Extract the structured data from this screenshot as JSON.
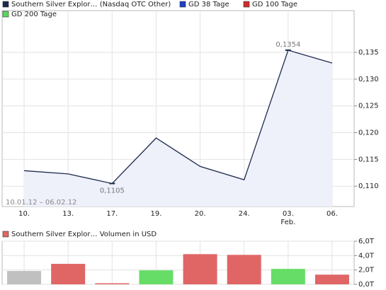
{
  "chart_data": [
    {
      "type": "line",
      "series": [
        {
          "name": "Southern Silver Explor… (Nasdaq OTC Other)",
          "color": "#1c2a4c",
          "values": [
            0.1129,
            0.1123,
            0.1105,
            0.119,
            0.1137,
            0.1112,
            0.1354,
            0.133
          ],
          "value_labels": [
            null,
            null,
            "0,1105",
            null,
            null,
            null,
            "0,1354",
            null
          ]
        }
      ],
      "indicators": [
        {
          "name": "GD 38 Tage",
          "color": "#1f3fc8"
        },
        {
          "name": "GD 100 Tage",
          "color": "#d42a2a"
        },
        {
          "name": "GD 200 Tage",
          "color": "#58d858"
        }
      ],
      "area_color": "#eef0fa",
      "categories": [
        "10.",
        "13.",
        "17.",
        "19.",
        "20.",
        "24.",
        "03.",
        "06."
      ],
      "month_labels": [
        null,
        null,
        null,
        null,
        null,
        null,
        "Feb.",
        null
      ],
      "date_range": "10.01.12 – 06.02.12",
      "ylim": [
        0.1062,
        0.1428
      ],
      "yticks": [
        {
          "value": 0.11,
          "label": "0,110"
        },
        {
          "value": 0.115,
          "label": "0,115"
        },
        {
          "value": 0.12,
          "label": "0,120"
        },
        {
          "value": 0.125,
          "label": "0,125"
        },
        {
          "value": 0.13,
          "label": "0,130"
        },
        {
          "value": 0.135,
          "label": "0,135"
        }
      ],
      "grid": true
    },
    {
      "type": "bar",
      "title": "Southern Silver Explor… Volumen in USD",
      "title_color": "#e06666",
      "values": [
        1.86,
        2.85,
        0.15,
        1.95,
        4.2,
        4.1,
        2.15,
        1.35
      ],
      "colors": [
        "#c0c0c0",
        "#e06666",
        "#e06666",
        "#66dd66",
        "#e06666",
        "#e06666",
        "#66dd66",
        "#e06666"
      ],
      "ylim": [
        0,
        6.0
      ],
      "yticks": [
        {
          "value": 0,
          "label": "0,0T"
        },
        {
          "value": 2.0,
          "label": "2,0T"
        },
        {
          "value": 4.0,
          "label": "4,0T"
        },
        {
          "value": 6.0,
          "label": "6,0T"
        }
      ],
      "grid": true
    }
  ]
}
